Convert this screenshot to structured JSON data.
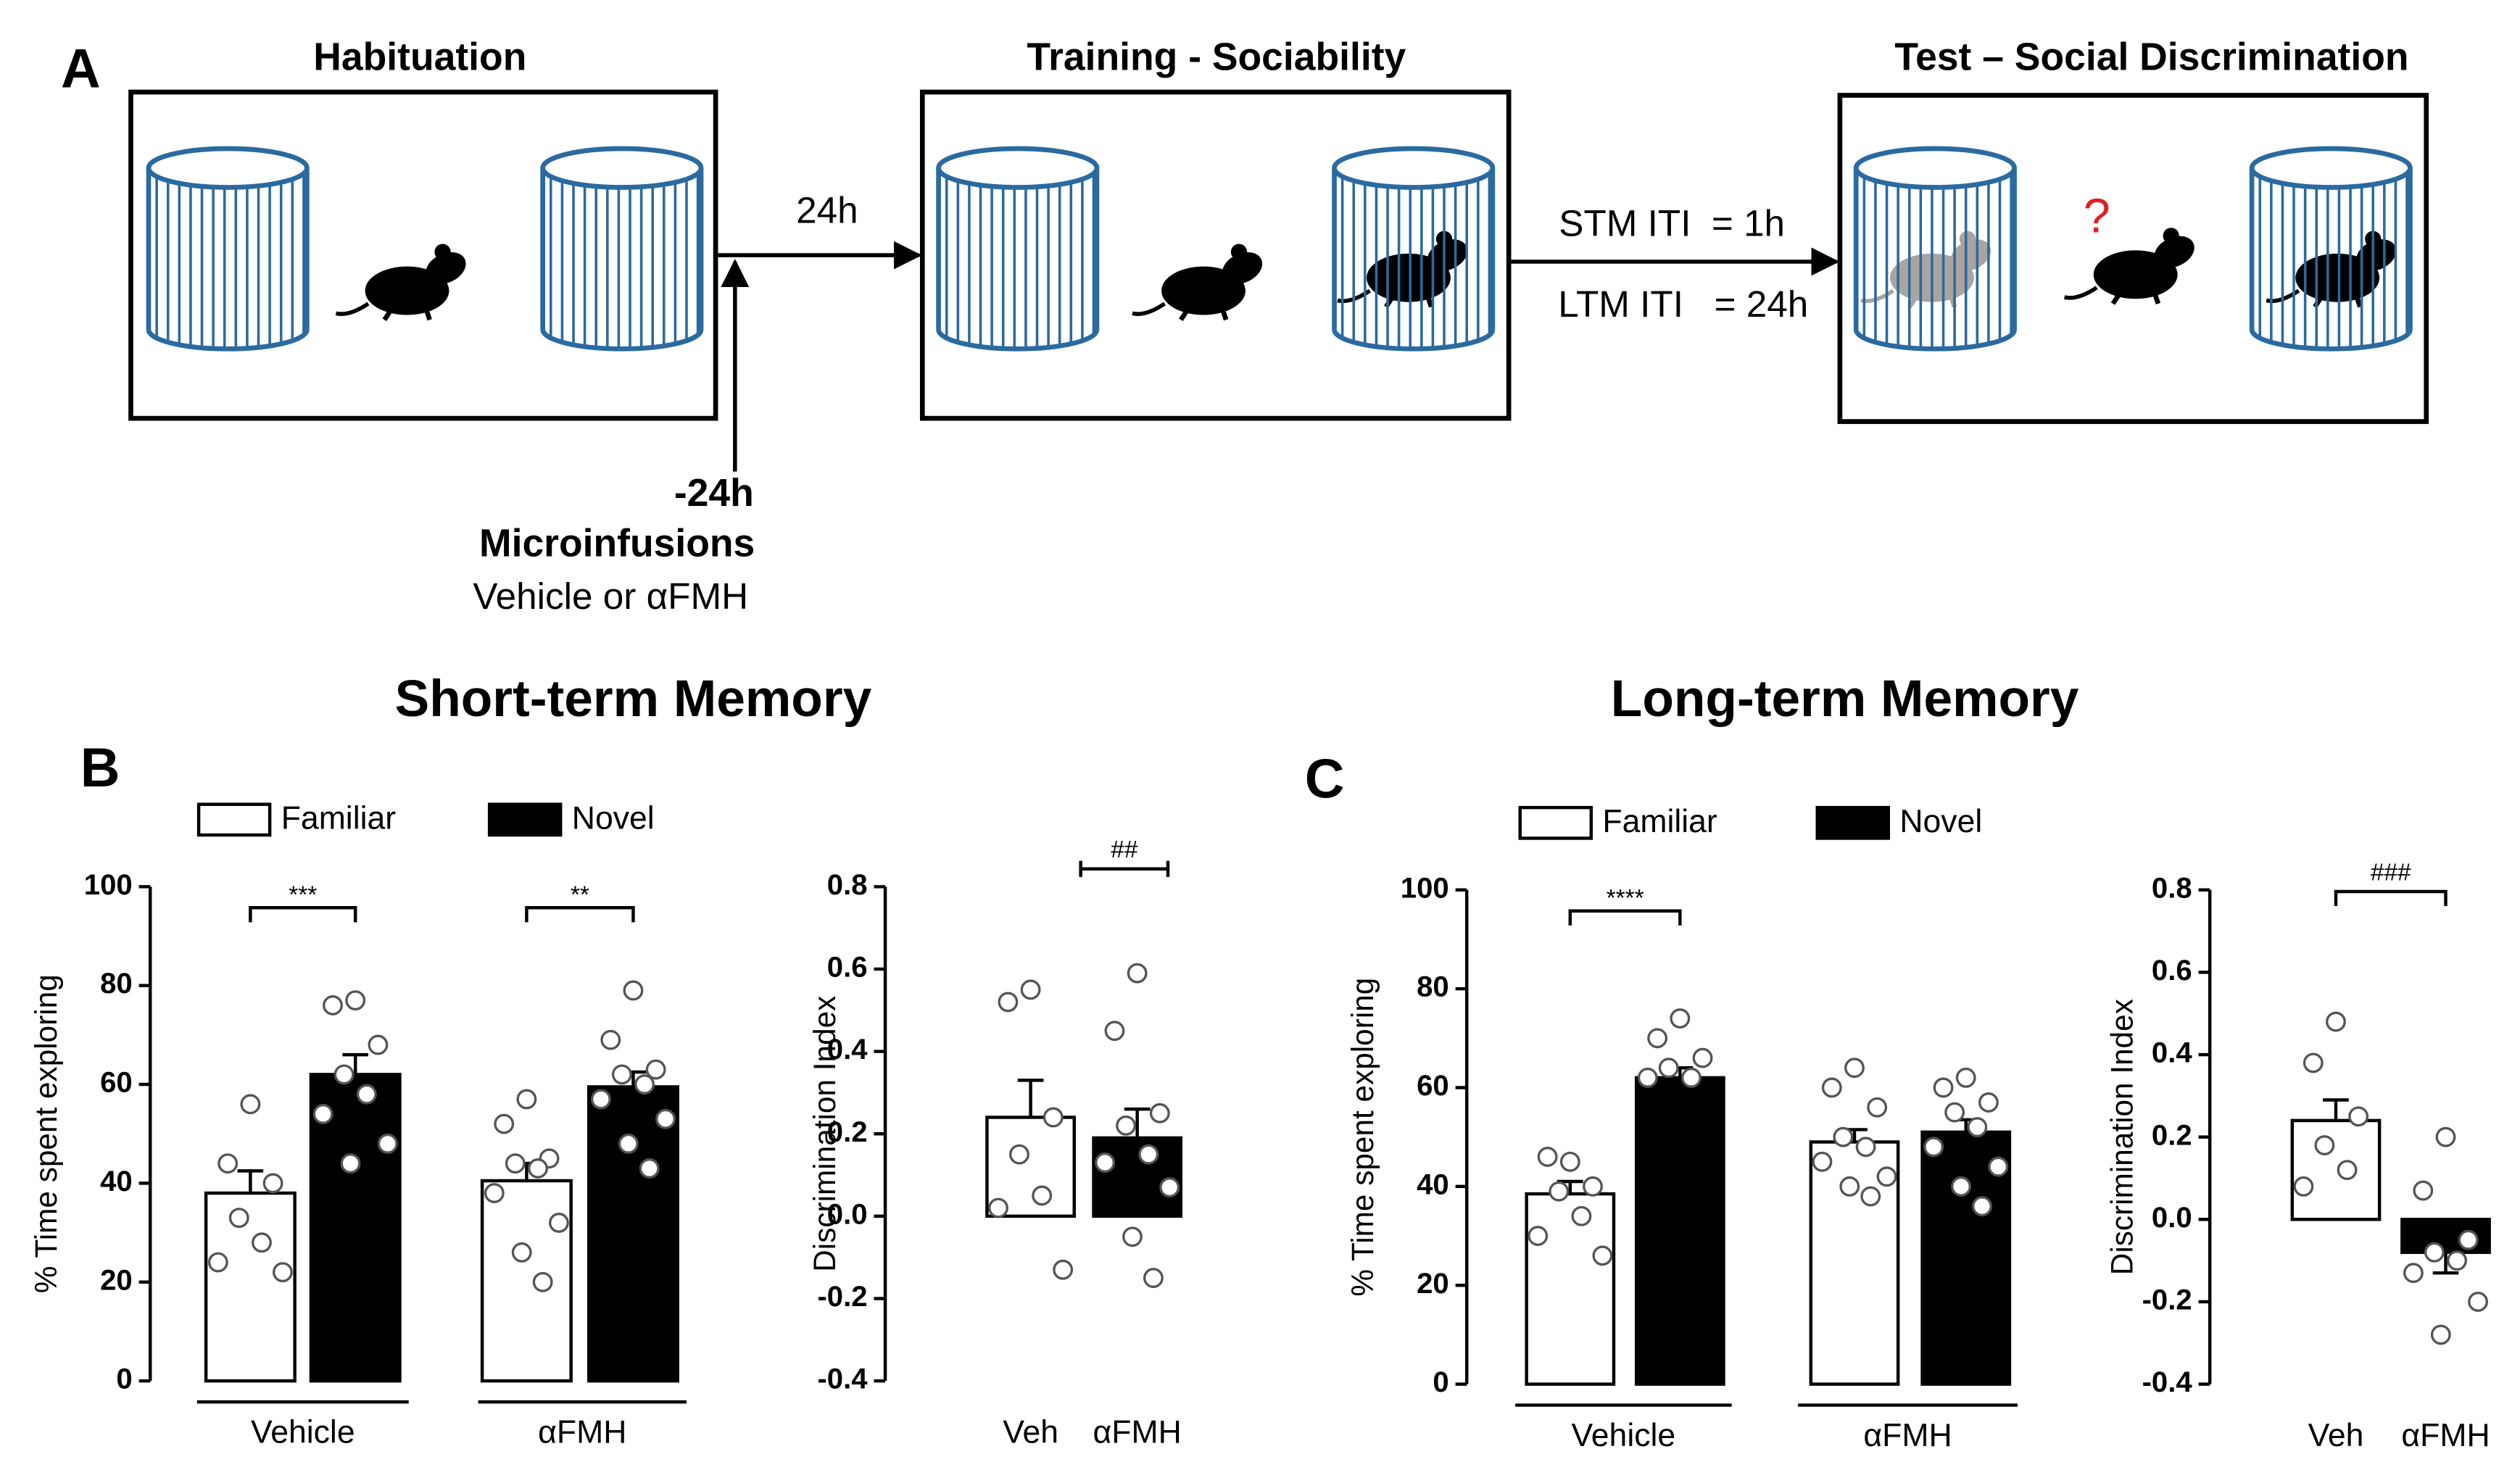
{
  "panel_labels": [
    "A",
    "B",
    "C"
  ],
  "diagram": {
    "stages": [
      "Habituation",
      "Training - Sociability",
      "Test – Social Discrimination"
    ],
    "interval": "24h",
    "iti": [
      "STM ITI  = 1h",
      "LTM ITI   = 24h"
    ],
    "infusion_time": "-24h",
    "infusion_title": "Microinfusions",
    "infusion_text": "Vehicle or αFMH",
    "question": "?"
  },
  "section_titles": [
    "Short-term Memory",
    "Long-term Memory"
  ],
  "chart_data": [
    {
      "type": "bar",
      "ylabel": "% Time spent exploring",
      "legend": true,
      "categories": [
        "Vehicle",
        "αFMH"
      ],
      "series": [
        {
          "name": "Familiar",
          "color": "#ffffff",
          "values": [
            38,
            40.5
          ],
          "errors": [
            4.5,
            3.5
          ],
          "points": [
            [
              56,
              44,
              40,
              33,
              28,
              24,
              22
            ],
            [
              57,
              52,
              45,
              44,
              43,
              38,
              32,
              26,
              20
            ]
          ]
        },
        {
          "name": "Novel",
          "color": "#000000",
          "values": [
            62,
            59.5
          ],
          "errors": [
            4,
            3
          ],
          "points": [
            [
              77,
              76,
              68,
              62,
              58,
              54,
              48,
              44
            ],
            [
              79,
              69,
              63,
              62,
              60,
              57,
              53,
              48,
              43
            ]
          ]
        }
      ],
      "significance": [
        "***",
        "**"
      ],
      "ylim": [
        0,
        100
      ],
      "yticks": [
        0,
        20,
        40,
        60,
        80,
        100
      ]
    },
    {
      "type": "bar",
      "ylabel": "Discrimination Index",
      "categories": [
        "Veh",
        "αFMH"
      ],
      "colors": [
        "#ffffff",
        "#000000"
      ],
      "values": [
        0.24,
        0.19
      ],
      "errors": [
        0.09,
        0.07
      ],
      "points": [
        [
          0.55,
          0.52,
          0.24,
          0.15,
          0.05,
          0.02,
          -0.13
        ],
        [
          0.59,
          0.45,
          0.25,
          0.22,
          0.15,
          0.13,
          0.07,
          -0.05,
          -0.15
        ]
      ],
      "significance": "##",
      "ylim": [
        -0.4,
        0.8
      ],
      "yticks": [
        -0.4,
        -0.2,
        {
          "value": 0,
          "label": "0.0"
        },
        0.2,
        0.4,
        0.6,
        0.8
      ]
    },
    {
      "type": "bar",
      "ylabel": "% Time spent exploring",
      "legend": true,
      "categories": [
        "Vehicle",
        "αFMH"
      ],
      "series": [
        {
          "name": "Familiar",
          "color": "#ffffff",
          "values": [
            38.5,
            49
          ],
          "errors": [
            2.5,
            2.5
          ],
          "points": [
            [
              45,
              46,
              40,
              39,
              34,
              30,
              26
            ],
            [
              64,
              60,
              56,
              50,
              48,
              45,
              42,
              40,
              38
            ]
          ]
        },
        {
          "name": "Novel",
          "color": "#000000",
          "values": [
            62,
            51
          ],
          "errors": [
            2,
            2.5
          ],
          "points": [
            [
              74,
              70,
              66,
              64,
              62,
              62
            ],
            [
              62,
              60,
              57,
              55,
              52,
              48,
              44,
              40,
              36
            ]
          ]
        }
      ],
      "significance": [
        "****",
        null
      ],
      "ylim": [
        0,
        100
      ],
      "yticks": [
        0,
        20,
        40,
        60,
        80,
        100
      ]
    },
    {
      "type": "bar",
      "ylabel": "Discrimination Index",
      "categories": [
        "Veh",
        "αFMH"
      ],
      "colors": [
        "#ffffff",
        "#000000"
      ],
      "values": [
        0.24,
        -0.08
      ],
      "errors": [
        0.05,
        0.05
      ],
      "points": [
        [
          0.48,
          0.38,
          0.25,
          0.18,
          0.12,
          0.08
        ],
        [
          0.2,
          0.07,
          -0.05,
          -0.08,
          -0.1,
          -0.13,
          -0.2,
          -0.28
        ]
      ],
      "significance": "###",
      "ylim": [
        -0.4,
        0.8
      ],
      "yticks": [
        -0.4,
        -0.2,
        {
          "value": 0,
          "label": "0.0"
        },
        0.2,
        0.4,
        0.6,
        0.8
      ]
    }
  ]
}
